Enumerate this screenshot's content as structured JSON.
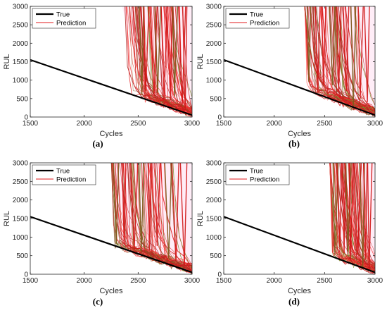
{
  "chart_data": [
    {
      "type": "line",
      "panel_label": "(a)",
      "xlabel": "Cycles",
      "ylabel": "RUL",
      "xlim": [
        1500,
        3000
      ],
      "ylim": [
        0,
        3000
      ],
      "xticks": [
        "1500",
        "2000",
        "2500",
        "3000"
      ],
      "yticks": [
        "0",
        "500",
        "1000",
        "1500",
        "2000",
        "2500",
        "3000"
      ],
      "legend": {
        "placement": "top-left",
        "entries": [
          "True",
          "Prediction"
        ]
      },
      "series": [
        {
          "name": "True",
          "color": "#000000",
          "x": [
            1500,
            3000
          ],
          "y": [
            1550,
            50
          ]
        },
        {
          "name": "Prediction",
          "color": "#e31a1c",
          "x_start": 2480,
          "x_min_reach": 2350,
          "y_band_at_end": [
            0,
            250
          ]
        }
      ]
    },
    {
      "type": "line",
      "panel_label": "(b)",
      "xlabel": "Cycles",
      "ylabel": "RUL",
      "xlim": [
        1500,
        3000
      ],
      "ylim": [
        0,
        3000
      ],
      "xticks": [
        "1500",
        "2000",
        "2500",
        "3000"
      ],
      "yticks": [
        "0",
        "500",
        "1000",
        "1500",
        "2000",
        "2500",
        "3000"
      ],
      "legend": {
        "placement": "top-left",
        "entries": [
          "True",
          "Prediction"
        ]
      },
      "series": [
        {
          "name": "True",
          "color": "#000000",
          "x": [
            1500,
            3000
          ],
          "y": [
            1550,
            50
          ]
        },
        {
          "name": "Prediction",
          "color": "#e31a1c",
          "x_start": 2300,
          "x_min_reach": 2300,
          "y_band_at_end": [
            0,
            300
          ]
        }
      ]
    },
    {
      "type": "line",
      "panel_label": "(c)",
      "xlabel": "Cycles",
      "ylabel": "RUL",
      "xlim": [
        1500,
        3000
      ],
      "ylim": [
        0,
        3000
      ],
      "xticks": [
        "1500",
        "2000",
        "2500",
        "3000"
      ],
      "yticks": [
        "0",
        "500",
        "1000",
        "1500",
        "2000",
        "2500",
        "3000"
      ],
      "legend": {
        "placement": "top-left",
        "entries": [
          "True",
          "Prediction"
        ]
      },
      "series": [
        {
          "name": "True",
          "color": "#000000",
          "x": [
            1500,
            3000
          ],
          "y": [
            1550,
            50
          ]
        },
        {
          "name": "Prediction",
          "color": "#e31a1c",
          "x_start": 2250,
          "x_min_reach": 2250,
          "y_band_at_end": [
            0,
            200
          ]
        }
      ]
    },
    {
      "type": "line",
      "panel_label": "(d)",
      "xlabel": "Cycles",
      "ylabel": "RUL",
      "xlim": [
        1500,
        3000
      ],
      "ylim": [
        0,
        3000
      ],
      "xticks": [
        "1500",
        "2000",
        "2500",
        "3000"
      ],
      "yticks": [
        "0",
        "500",
        "1000",
        "1500",
        "2000",
        "2500",
        "3000"
      ],
      "legend": {
        "placement": "top-left",
        "entries": [
          "True",
          "Prediction"
        ]
      },
      "series": [
        {
          "name": "True",
          "color": "#000000",
          "x": [
            1500,
            3000
          ],
          "y": [
            1550,
            50
          ]
        },
        {
          "name": "Prediction",
          "color": "#e31a1c",
          "x_start": 2550,
          "x_min_reach": 2550,
          "y_band_at_end": [
            0,
            200
          ]
        }
      ]
    }
  ]
}
